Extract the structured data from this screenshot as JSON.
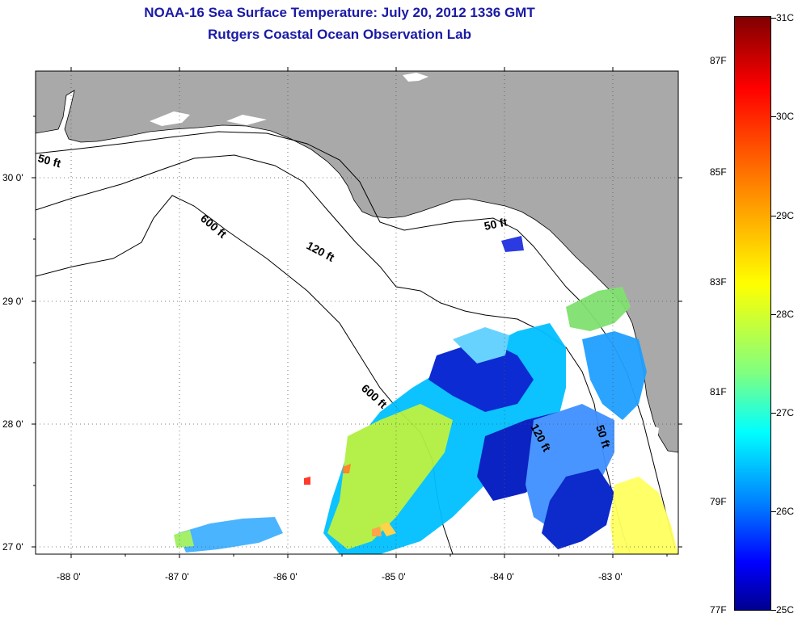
{
  "title": {
    "line1": "NOAA-16 Sea Surface Temperature:  July 20, 2012 1336 GMT",
    "line2": "Rutgers Coastal Ocean Observation Lab"
  },
  "map": {
    "lon_range": [
      -88.3,
      -82.45
    ],
    "lat_range": [
      26.95,
      30.85
    ],
    "lon_ticks": [
      "-88 0'",
      "-87 0'",
      "-86 0'",
      "-85 0'",
      "-84 0'",
      "-83 0'"
    ],
    "lat_ticks": [
      "30 0'",
      "29 0'",
      "28 0'",
      "27 0'"
    ],
    "contour_labels": [
      {
        "text": "50 ft"
      },
      {
        "text": "600 ft"
      },
      {
        "text": "120 ft"
      },
      {
        "text": "50 ft"
      },
      {
        "text": "600 ft"
      },
      {
        "text": "120 ft"
      },
      {
        "text": "50 ft"
      }
    ],
    "land_color": "#a9a9a9"
  },
  "colorbar": {
    "celsius_labels": [
      "31C",
      "30C",
      "29C",
      "28C",
      "27C",
      "26C",
      "25C"
    ],
    "fahrenheit_labels": [
      "87F",
      "85F",
      "83F",
      "81F",
      "79F",
      "77F"
    ],
    "colors": [
      "#800000",
      "#ff0000",
      "#ff8000",
      "#ffff00",
      "#80ff80",
      "#00ffff",
      "#0080ff",
      "#0000ff",
      "#00008f"
    ]
  }
}
